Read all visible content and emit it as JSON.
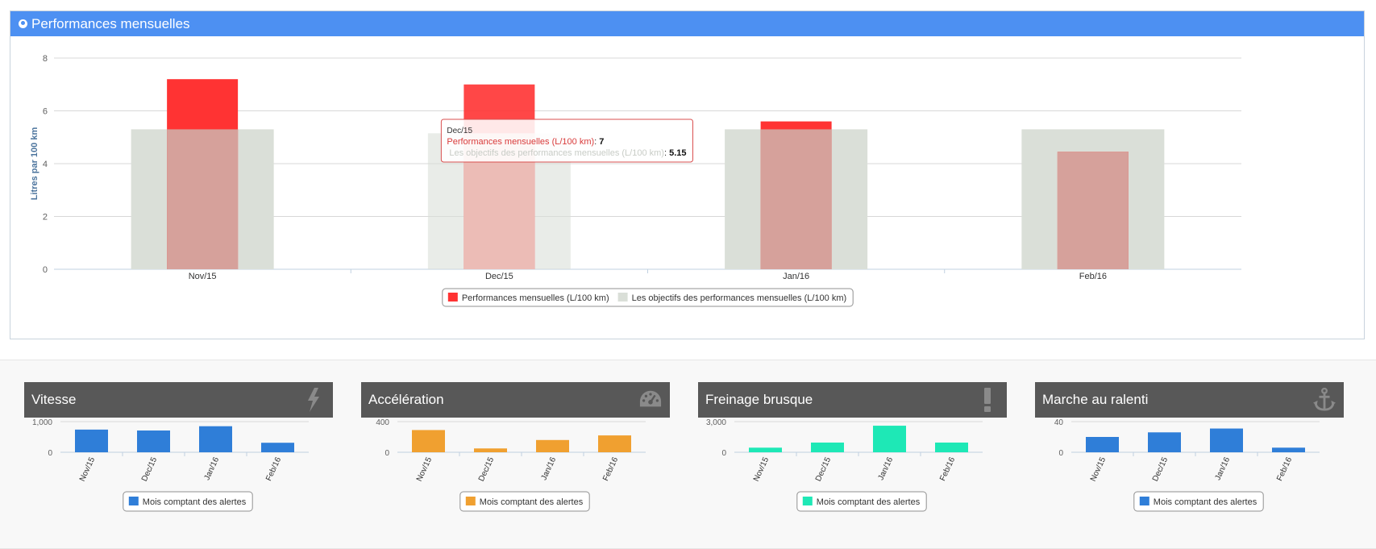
{
  "main": {
    "title": "Performances mensuelles",
    "chart_data": {
      "type": "bar",
      "title": "Performances mensuelles",
      "ylabel": "Litres par 100 km",
      "xlabel": "",
      "ylim": [
        0,
        8
      ],
      "yticks": [
        0,
        2,
        4,
        6,
        8
      ],
      "categories": [
        "Nov/15",
        "Dec/15",
        "Jan/16",
        "Feb/16"
      ],
      "series": [
        {
          "name": "Les objectifs des performances mensuelles (L/100 km)",
          "values": [
            5.3,
            5.15,
            5.3,
            5.3
          ],
          "color": "#dadfd8"
        },
        {
          "name": "Performances mensuelles (L/100 km)",
          "values": [
            7.2,
            7,
            5.6,
            4.45
          ],
          "color": "#ff3333"
        }
      ],
      "legend_position": "bottom-center",
      "grid": true,
      "tooltip": {
        "category": "Dec/15",
        "line1_label": "Performances mensuelles (L/100 km)",
        "line1_value": "7",
        "line2_label": "Les objectifs des performances mensuelles (L/100 km)",
        "line2_value": "5.15"
      }
    }
  },
  "cards": [
    {
      "title": "Vitesse",
      "icon": "lightning-icon",
      "chart_data": {
        "type": "bar",
        "categories": [
          "Nov/15",
          "Dec/15",
          "Jan/16",
          "Feb/16"
        ],
        "values": [
          740,
          710,
          850,
          310
        ],
        "ylim": [
          0,
          1000
        ],
        "yticks": [
          "0",
          "1,000"
        ],
        "series_name": "Mois comptant des alertes",
        "color": "#2f7ed8"
      }
    },
    {
      "title": "Accélération",
      "icon": "gauge-icon",
      "chart_data": {
        "type": "bar",
        "categories": [
          "Nov/15",
          "Dec/15",
          "Jan/16",
          "Feb/16"
        ],
        "values": [
          290,
          50,
          160,
          220
        ],
        "ylim": [
          0,
          400
        ],
        "yticks": [
          "0",
          "400"
        ],
        "series_name": "Mois comptant des alertes",
        "color": "#f0a030"
      }
    },
    {
      "title": "Freinage brusque",
      "icon": "exclamation-icon",
      "chart_data": {
        "type": "bar",
        "categories": [
          "Nov/15",
          "Dec/15",
          "Jan/16",
          "Feb/16"
        ],
        "values": [
          450,
          950,
          2600,
          950
        ],
        "ylim": [
          0,
          3000
        ],
        "yticks": [
          "0",
          "3,000"
        ],
        "series_name": "Mois comptant des alertes",
        "color": "#1ee8b6"
      }
    },
    {
      "title": "Marche au ralenti",
      "icon": "anchor-icon",
      "chart_data": {
        "type": "bar",
        "categories": [
          "Nov/15",
          "Dec/15",
          "Jan/16",
          "Feb/16"
        ],
        "values": [
          20,
          26,
          31,
          6
        ],
        "ylim": [
          0,
          40
        ],
        "yticks": [
          "0",
          "40"
        ],
        "series_name": "Mois comptant des alertes",
        "color": "#2f7ed8"
      }
    }
  ]
}
